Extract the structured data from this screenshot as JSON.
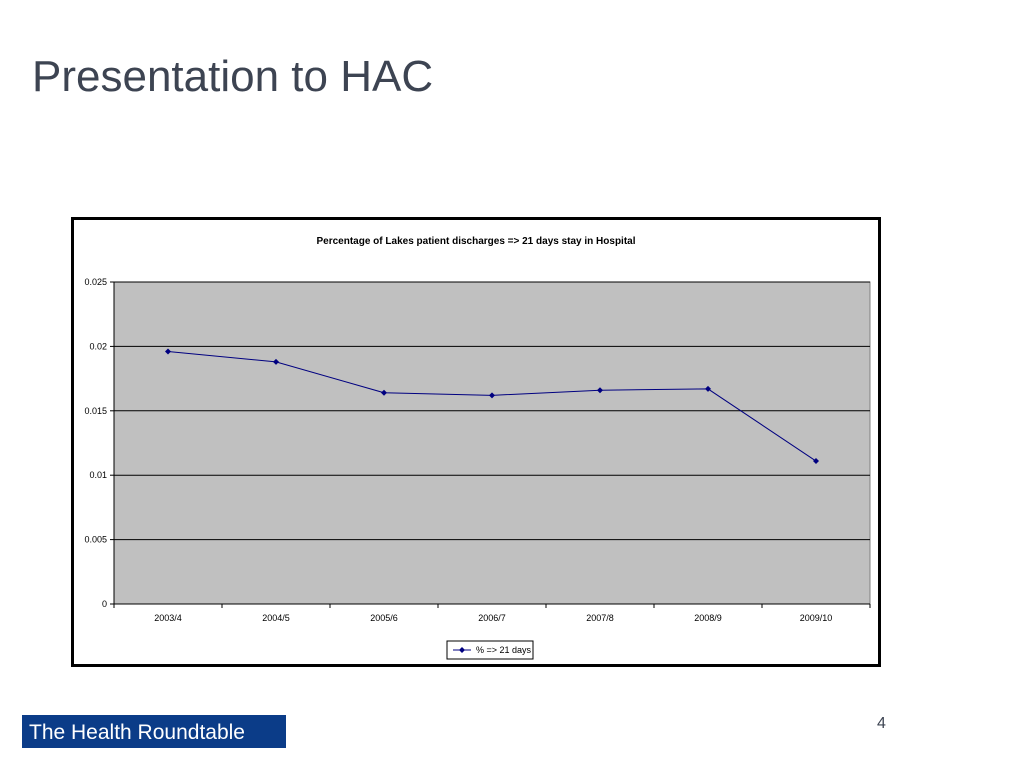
{
  "slide": {
    "title": "Presentation to HAC",
    "logo_text": "The Health Roundtable",
    "page_number": "4"
  },
  "chart_data": {
    "type": "line",
    "title": "Percentage of Lakes patient discharges => 21 days stay in Hospital",
    "xlabel": "",
    "ylabel": "",
    "categories": [
      "2003/4",
      "2004/5",
      "2005/6",
      "2006/7",
      "2007/8",
      "2008/9",
      "2009/10"
    ],
    "series": [
      {
        "name": "% => 21 days",
        "values": [
          0.0196,
          0.0188,
          0.0164,
          0.0162,
          0.0166,
          0.0167,
          0.0111
        ],
        "color": "#000080",
        "marker": "diamond"
      }
    ],
    "ylim": [
      0,
      0.025
    ],
    "yticks": [
      "0",
      "0.005",
      "0.01",
      "0.015",
      "0.02",
      "0.025"
    ],
    "ytick_values": [
      0,
      0.005,
      0.01,
      0.015,
      0.02,
      0.025
    ],
    "plot_background": "#c0c0c0",
    "grid": true,
    "legend_position": "bottom"
  }
}
